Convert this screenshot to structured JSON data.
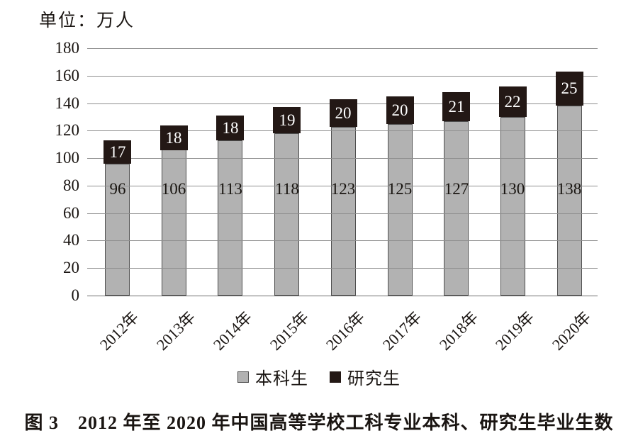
{
  "unit_label": "单位：万人",
  "caption": "图 3　2012 年至 2020 年中国高等学校工科专业本科、研究生毕业生数",
  "legend": {
    "items": [
      {
        "label": "本科生",
        "swatch_color": "#b2b2b2"
      },
      {
        "label": "研究生",
        "swatch_color": "#231815"
      }
    ]
  },
  "colors": {
    "undergrad_bar": "#b2b2b2",
    "bar_border": "#4f4f4f",
    "grad_bar": "#231815",
    "gridline": "#8f8f8f",
    "text": "#1a1512",
    "value_text_on_dark": "#ffffff",
    "background": "#ffffff"
  },
  "chart_data": {
    "type": "bar",
    "stacked": true,
    "title": "图 3　2012 年至 2020 年中国高等学校工科专业本科、研究生毕业生数",
    "unit": "单位：万人",
    "categories": [
      "2012年",
      "2013年",
      "2014年",
      "2015年",
      "2016年",
      "2017年",
      "2018年",
      "2019年",
      "2020年"
    ],
    "series": [
      {
        "name": "本科生",
        "color": "#b2b2b2",
        "values": [
          96,
          106,
          113,
          118,
          123,
          125,
          127,
          130,
          138
        ]
      },
      {
        "name": "研究生",
        "color": "#231815",
        "values": [
          17,
          18,
          18,
          19,
          20,
          20,
          21,
          22,
          25
        ]
      }
    ],
    "totals": [
      113,
      124,
      131,
      137,
      143,
      145,
      148,
      152,
      163
    ],
    "ylim": [
      0,
      180
    ],
    "ytick_step": 20,
    "yticks": [
      0,
      20,
      40,
      60,
      80,
      100,
      120,
      140,
      160,
      180
    ],
    "grid": true,
    "legend_position": "bottom",
    "value_labels": "inside"
  }
}
